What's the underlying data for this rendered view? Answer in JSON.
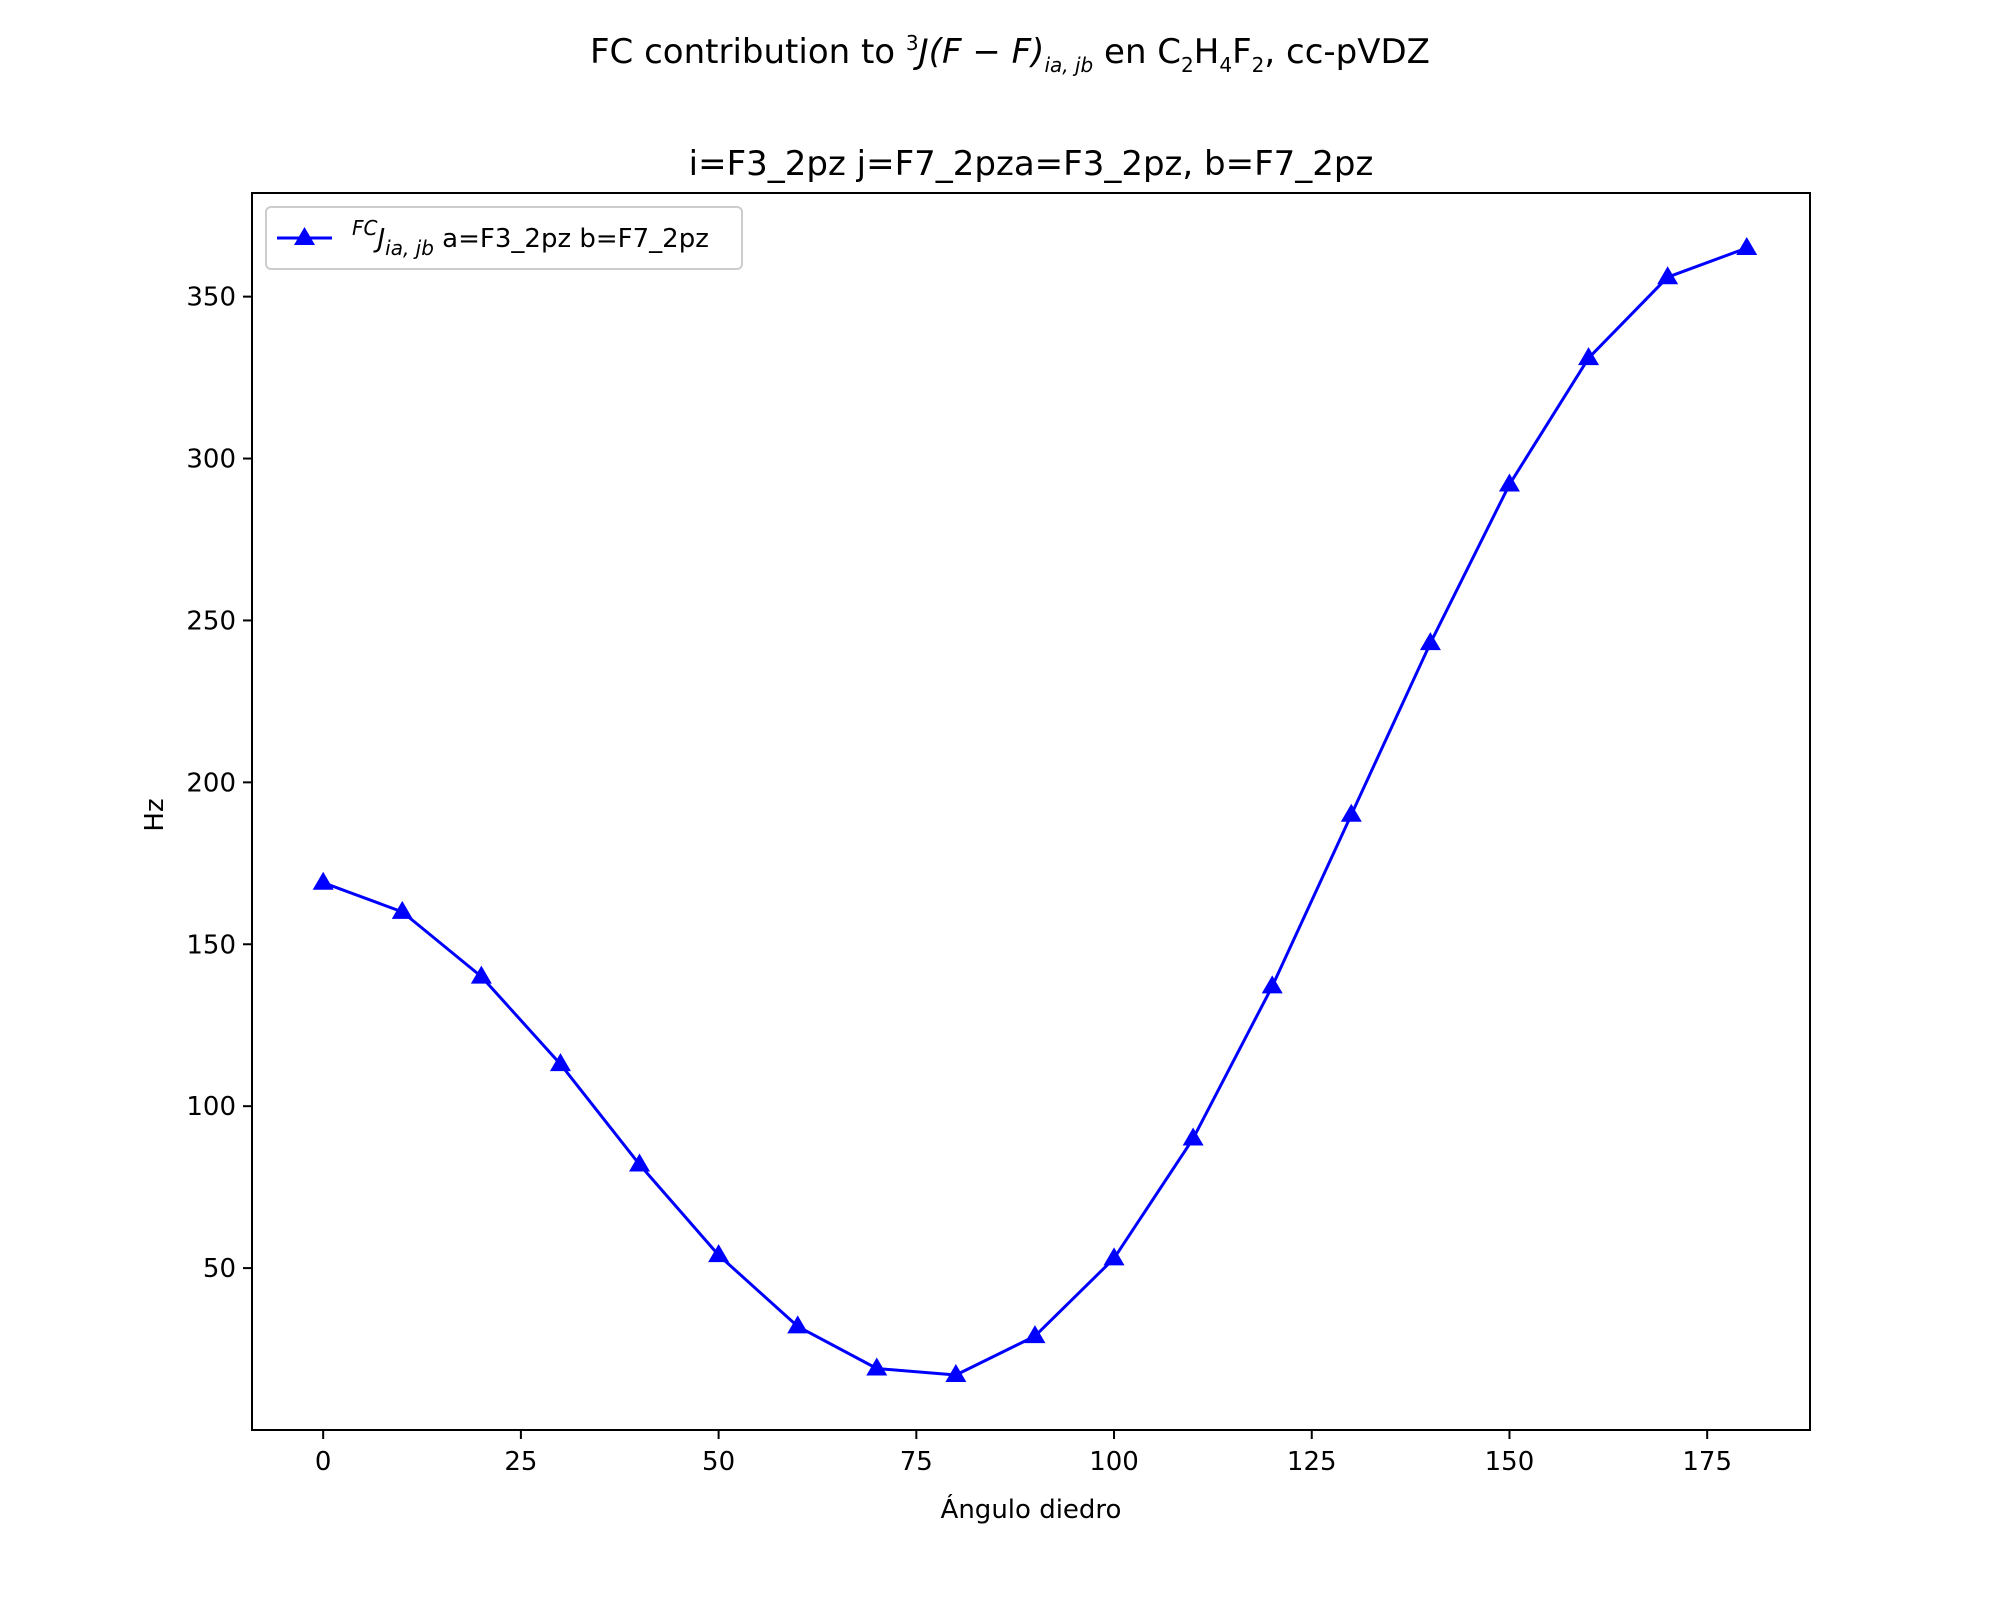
{
  "chart_data": {
    "type": "line",
    "suptitle": {
      "prefix": "FC contribution to ",
      "coupling_sup": "3",
      "coupling": "J(F − F)",
      "coupling_sub": "ia, jb",
      "middle": " en C",
      "sub1": "2",
      "h": "H",
      "sub2": "4",
      "f": "F",
      "sub3": "2",
      "suffix": ", cc-pVDZ"
    },
    "title": "i=F3_2pz  j=F7_2pza=F3_2pz, b=F7_2pz",
    "xlabel": "Ángulo diedro",
    "ylabel": "Hz",
    "xlim": [
      -9,
      188
    ],
    "ylim": [
      0,
      382
    ],
    "xticks": [
      0,
      25,
      50,
      75,
      100,
      125,
      150,
      175
    ],
    "yticks": [
      50,
      100,
      150,
      200,
      250,
      300,
      350
    ],
    "legend_position": "upper left",
    "series": [
      {
        "legend": {
          "sup": "FC",
          "main": "J",
          "sub": "ia, jb",
          "text": " a=F3_2pz b=F7_2pz"
        },
        "color": "#0000ff",
        "marker": "triangle-up",
        "x": [
          0,
          10,
          20,
          30,
          40,
          50,
          60,
          70,
          80,
          90,
          100,
          110,
          120,
          130,
          140,
          150,
          160,
          170,
          180
        ],
        "y": [
          169,
          160,
          140,
          113,
          82,
          54,
          32,
          19,
          17,
          29,
          53,
          90,
          137,
          190,
          243,
          292,
          331,
          356,
          365
        ]
      }
    ]
  }
}
